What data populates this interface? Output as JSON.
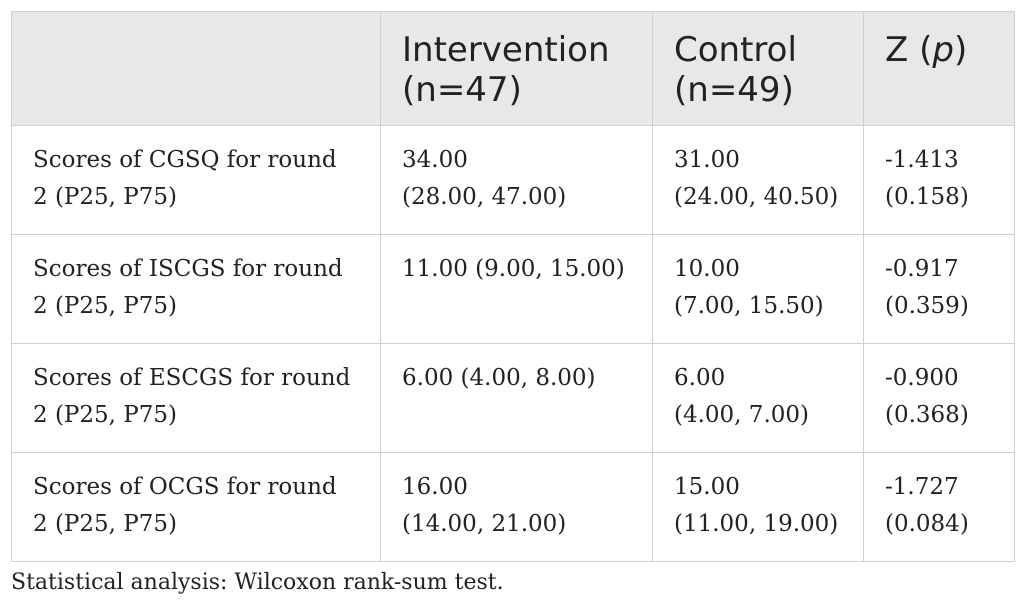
{
  "table": {
    "header": {
      "col1": "",
      "col2_line1": "Intervention",
      "col2_line2": "(n=47)",
      "col3_line1": "Control",
      "col3_line2": "(n=49)",
      "col4_prefix": "Z (",
      "col4_italic": "p",
      "col4_suffix": ")"
    },
    "rows": [
      {
        "label_line1": "Scores of CGSQ for round",
        "label_line2": "2 (P25, P75)",
        "intervention_line1": "34.00",
        "intervention_line2": "(28.00, 47.00)",
        "control_line1": "31.00",
        "control_line2": "(24.00, 40.50)",
        "z_line1": "-1.413",
        "z_line2": "(0.158)"
      },
      {
        "label_line1": "Scores of ISCGS for round",
        "label_line2": "2 (P25, P75)",
        "intervention_line1": "11.00 (9.00, 15.00)",
        "intervention_line2": "",
        "control_line1": "10.00",
        "control_line2": "(7.00, 15.50)",
        "z_line1": "-0.917",
        "z_line2": "(0.359)"
      },
      {
        "label_line1": "Scores of ESCGS for round",
        "label_line2": "2 (P25, P75)",
        "intervention_line1": "6.00 (4.00, 8.00)",
        "intervention_line2": "",
        "control_line1": "6.00",
        "control_line2": "(4.00, 7.00)",
        "z_line1": "-0.900",
        "z_line2": "(0.368)"
      },
      {
        "label_line1": "Scores of OCGS for round",
        "label_line2": "2 (P25, P75)",
        "intervention_line1": "16.00",
        "intervention_line2": "(14.00, 21.00)",
        "control_line1": "15.00",
        "control_line2": "(11.00, 19.00)",
        "z_line1": "-1.727",
        "z_line2": "(0.084)"
      }
    ]
  },
  "footnote": "Statistical analysis: Wilcoxon rank-sum test."
}
